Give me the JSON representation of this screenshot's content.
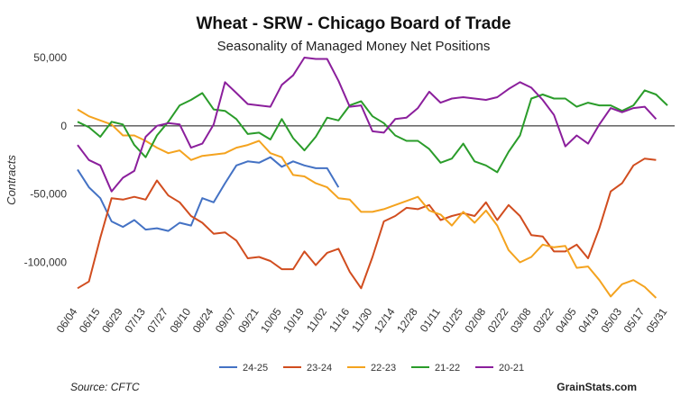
{
  "chart_data": {
    "type": "line",
    "title": "Wheat - SRW - Chicago Board of Trade",
    "subtitle": "Seasonality of Managed Money Net Positions",
    "ylabel": "Contracts",
    "xlabel": "",
    "ylim": [
      -128000,
      50000
    ],
    "yticks": [
      50000,
      0,
      -50000,
      -100000
    ],
    "ytick_labels": [
      "50,000",
      "0",
      "-50,000",
      "-100,000"
    ],
    "x_labels": [
      "06/04",
      "06/15",
      "06/29",
      "07/13",
      "07/27",
      "08/10",
      "08/24",
      "09/07",
      "09/21",
      "10/05",
      "10/19",
      "11/02",
      "11/16",
      "11/30",
      "12/14",
      "12/28",
      "01/11",
      "01/25",
      "02/08",
      "02/22",
      "03/08",
      "03/22",
      "04/05",
      "04/19",
      "05/03",
      "05/17",
      "05/31"
    ],
    "legend_position": "bottom",
    "grid": false,
    "series": [
      {
        "name": "24-25",
        "color": "#4472c4",
        "values": [
          -32000,
          -45000,
          -53000,
          -70000,
          -74000,
          -69000,
          -76000,
          -75000,
          -77000,
          -71000,
          -73000,
          -53000,
          -56000,
          -42000,
          -29000,
          -26000,
          -27000,
          -23000,
          -30000,
          -26000,
          -29000,
          -31000,
          -31000,
          -45000
        ]
      },
      {
        "name": "23-24",
        "color": "#d14d1f",
        "values": [
          -119000,
          -114000,
          -82000,
          -53000,
          -54000,
          -52000,
          -54000,
          -40000,
          -51000,
          -56000,
          -66000,
          -71000,
          -79000,
          -78000,
          -84000,
          -97000,
          -96000,
          -99000,
          -105000,
          -105000,
          -92000,
          -102000,
          -93000,
          -90000,
          -107000,
          -119000,
          -96000,
          -70000,
          -66000,
          -60000,
          -61000,
          -58000,
          -69000,
          -66000,
          -64000,
          -66000,
          -56000,
          -69000,
          -58000,
          -66000,
          -80000,
          -81000,
          -92000,
          -92000,
          -87000,
          -97000,
          -75000,
          -48000,
          -42000,
          -29000,
          -24000,
          -25000
        ]
      },
      {
        "name": "22-23",
        "color": "#f4a31f",
        "values": [
          12000,
          7000,
          4000,
          1000,
          -7000,
          -7000,
          -11000,
          -16000,
          -20000,
          -18000,
          -25000,
          -22000,
          -21000,
          -20000,
          -16000,
          -14000,
          -11000,
          -20000,
          -23000,
          -36000,
          -37000,
          -42000,
          -45000,
          -53000,
          -54000,
          -63000,
          -63000,
          -61000,
          -58000,
          -55000,
          -52000,
          -62000,
          -65000,
          -73000,
          -63000,
          -71000,
          -62000,
          -73000,
          -91000,
          -100000,
          -96000,
          -87000,
          -89000,
          -88000,
          -104000,
          -103000,
          -113000,
          -125000,
          -116000,
          -113000,
          -118000,
          -126000
        ]
      },
      {
        "name": "21-22",
        "color": "#2a9c2a",
        "values": [
          3000,
          -1000,
          -8000,
          3000,
          1000,
          -14000,
          -23000,
          -7000,
          3000,
          15000,
          19000,
          24000,
          12000,
          11000,
          5000,
          -6000,
          -5000,
          -10000,
          5000,
          -9000,
          -18000,
          -8000,
          6000,
          4000,
          15000,
          18000,
          7000,
          2000,
          -7000,
          -11000,
          -11000,
          -17000,
          -27000,
          -24000,
          -13000,
          -26000,
          -29000,
          -34000,
          -19000,
          -7000,
          20000,
          23000,
          20000,
          20000,
          14000,
          17000,
          15000,
          15000,
          11000,
          15000,
          26000,
          23000,
          15000
        ]
      },
      {
        "name": "20-21",
        "color": "#8b1f9c",
        "values": [
          -14000,
          -25000,
          -29000,
          -48000,
          -38000,
          -33000,
          -8000,
          0,
          2000,
          1000,
          -16000,
          -13000,
          1000,
          32000,
          24000,
          16000,
          15000,
          14000,
          30000,
          37000,
          50000,
          49000,
          49000,
          33000,
          14000,
          15000,
          -4000,
          -5000,
          5000,
          6000,
          13000,
          25000,
          17000,
          20000,
          21000,
          20000,
          19000,
          21000,
          27000,
          32000,
          28000,
          19000,
          8000,
          -15000,
          -7000,
          -13000,
          1000,
          13000,
          10000,
          13000,
          14000,
          5000
        ]
      }
    ]
  },
  "footer": {
    "source": "Source: CFTC",
    "brand": "GrainStats.com"
  }
}
